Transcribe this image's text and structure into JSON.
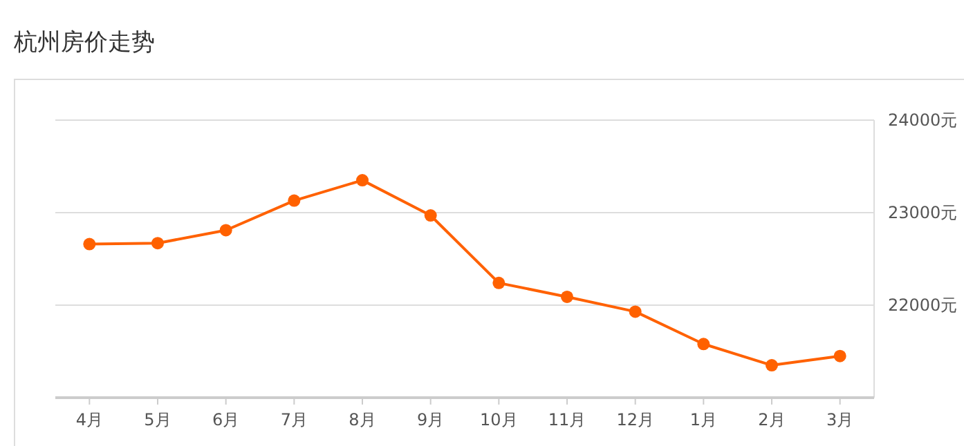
{
  "chart_data": {
    "type": "line",
    "title": "杭州房价走势",
    "categories": [
      "4月",
      "5月",
      "6月",
      "7月",
      "8月",
      "9月",
      "10月",
      "11月",
      "12月",
      "1月",
      "2月",
      "3月"
    ],
    "series": [
      {
        "color": "#ff6100",
        "values": [
          22660,
          22670,
          22810,
          23130,
          23350,
          22970,
          22240,
          22090,
          21930,
          21580,
          21350,
          21450
        ]
      }
    ],
    "ylim": [
      21000,
      24000
    ],
    "yticks": [
      {
        "value": 22000,
        "label": "22000元"
      },
      {
        "value": 23000,
        "label": "23000元"
      },
      {
        "value": 24000,
        "label": "24000元"
      }
    ],
    "grid": "y",
    "marker": "circle",
    "line_style": "solid"
  }
}
